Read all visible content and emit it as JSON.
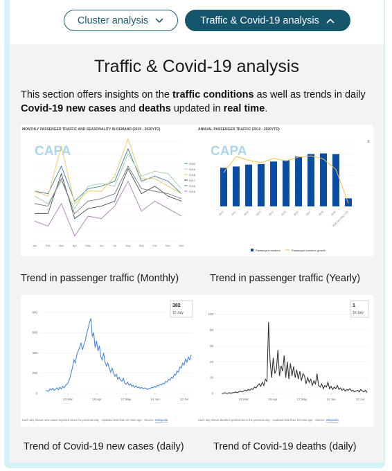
{
  "toggles": {
    "cluster_label": "Cluster analysis",
    "traffic_label": "Traffic & Covid-19 analysis"
  },
  "section": {
    "title": "Traffic & Covid-19 analysis",
    "intro": {
      "p1": "This section offers insights on the ",
      "b1": "traffic conditions",
      "p2": " as well as trends in daily ",
      "b2": "Covid-19 new cases",
      "p3": " and ",
      "b3": "deaths",
      "p4": " updated in ",
      "b4": "real time",
      "p5": "."
    }
  },
  "charts": {
    "monthly": {
      "caption": "Trend in passenger traffic (Monthly)",
      "heading": "MONTHLY PASSENGER TRAFFIC AND SEASONALITY IN DEMAND (2015 - 2020YTD)",
      "watermark": "CAPA"
    },
    "yearly": {
      "caption": "Trend in passenger traffic (Yearly)",
      "heading": "ANNUAL PASSENGER TRAFFIC (2010 - 2020YTD)",
      "watermark": "CAPA",
      "legend_bar": "Passenger numbers",
      "legend_line": "Passenger numbers growth"
    },
    "cases": {
      "caption": "Trend of Covid-19 new cases (daily)",
      "tooltip_value": "382",
      "tooltip_date": "16 July",
      "footnote": "Each day shows new cases reported since the previous day · Updated less than 10 mins ago · Source: ",
      "source": "Wikipedia"
    },
    "deaths": {
      "caption": "Trend of Covid-19 deaths (daily)",
      "tooltip_value": "1",
      "tooltip_date": "16 July",
      "footnote": "Each day shows deaths reported since the previous day · Updated less than 10 mins ago · Source: ",
      "source": "Wikipedia"
    }
  },
  "chart_data": [
    {
      "type": "line",
      "title": "MONTHLY PASSENGER TRAFFIC AND SEASONALITY IN DEMAND (2015 - 2020YTD)",
      "categories": [
        "Jan",
        "Feb",
        "Mar",
        "Apr",
        "May",
        "Jun",
        "Jul",
        "Aug",
        "Sep",
        "Oct",
        "Nov",
        "Dec"
      ],
      "series": [
        {
          "name": "2020",
          "color": "#3a7ca5",
          "values": [
            7.0,
            6.9,
            8.0,
            6.6,
            7.1,
            7.2,
            7.4,
            8.7,
            7.4,
            7.6,
            7.4,
            6.9
          ]
        },
        {
          "name": "2019",
          "color": "#9ad0a0",
          "values": [
            6.8,
            6.5,
            7.4,
            6.3,
            7.2,
            7.3,
            7.2,
            8.5,
            7.6,
            7.8,
            7.7,
            7.1
          ]
        },
        {
          "name": "2018",
          "color": "#f0c75e",
          "values": [
            7.0,
            6.8,
            8.8,
            6.5,
            7.0,
            7.0,
            7.6,
            9.1,
            7.5,
            7.5,
            7.2,
            6.9
          ]
        },
        {
          "name": "2017",
          "color": "#444c57",
          "values": [
            6.1,
            6.1,
            7.7,
            5.9,
            6.3,
            6.4,
            6.6,
            7.9,
            6.9,
            7.2,
            6.8,
            6.6
          ]
        },
        {
          "name": "2016",
          "color": "#6f7b87",
          "values": [
            6.5,
            6.4,
            7.5,
            6.1,
            6.6,
            6.7,
            6.9,
            8.0,
            7.1,
            7.0,
            6.9,
            6.7
          ]
        },
        {
          "name": "2015",
          "color": "#b079b8",
          "values": [
            5.8,
            5.6,
            6.5,
            5.2,
            6.0,
            5.9,
            6.4,
            7.4,
            6.2,
            6.6,
            6.3,
            6.0
          ]
        }
      ],
      "ylim": [
        5,
        9
      ]
    },
    {
      "type": "bar",
      "title": "ANNUAL PASSENGER TRAFFIC (2010 - 2020YTD)",
      "categories": [
        "2010",
        "2011",
        "2012",
        "2013",
        "2014",
        "2015",
        "2016",
        "2017",
        "2018",
        "2019",
        "2020 Jan-May YTD"
      ],
      "series": [
        {
          "name": "Passenger numbers",
          "values": [
            62,
            64,
            67,
            68,
            72,
            74,
            80,
            84,
            85,
            84,
            13
          ]
        },
        {
          "name": "Passenger numbers growth",
          "values": [
            1.5,
            4.1,
            3.5,
            3.1,
            3.8,
            3.4,
            4.0,
            4.2,
            3.7,
            2.0,
            -3.5
          ]
        }
      ]
    },
    {
      "type": "line",
      "x_ticks": [
        "22 Mar",
        "19 Apr",
        "17 May",
        "14 Jun",
        "12 Jul"
      ],
      "y_ticks": [
        0,
        200,
        400,
        600,
        800
      ],
      "ylim": [
        0,
        820
      ],
      "values": [
        30,
        25,
        20,
        45,
        35,
        50,
        30,
        40,
        55,
        35,
        60,
        45,
        70,
        55,
        80,
        90,
        110,
        150,
        200,
        260,
        330,
        300,
        380,
        420,
        450,
        500,
        430,
        480,
        520,
        590,
        640,
        700,
        740,
        560,
        600,
        450,
        520,
        420,
        470,
        360,
        330,
        400,
        310,
        270,
        300,
        250,
        210,
        250,
        200,
        170,
        190,
        140,
        160,
        130,
        120,
        150,
        100,
        90,
        110,
        80,
        95,
        70,
        80,
        60,
        75,
        55,
        65,
        50,
        60,
        45,
        55,
        50,
        40,
        50,
        45,
        60,
        55,
        70,
        60,
        80,
        75,
        90,
        85,
        100,
        95,
        120,
        110,
        140,
        130,
        160,
        150,
        190,
        180,
        220,
        210,
        260,
        250,
        300,
        280,
        340,
        310,
        360,
        330,
        382
      ]
    },
    {
      "type": "line",
      "x_ticks": [
        "22 Mar",
        "19 Apr",
        "17 May",
        "14 Jun",
        "12 Jul"
      ],
      "y_ticks": [
        0,
        20,
        40,
        60,
        80,
        100
      ],
      "ylim": [
        0,
        105
      ],
      "values": [
        0,
        0,
        1,
        0,
        0,
        1,
        0,
        1,
        1,
        2,
        1,
        2,
        3,
        2,
        3,
        4,
        3,
        5,
        4,
        6,
        5,
        8,
        7,
        10,
        12,
        9,
        14,
        10,
        18,
        15,
        90,
        40,
        20,
        45,
        25,
        30,
        55,
        22,
        35,
        28,
        48,
        20,
        40,
        18,
        38,
        22,
        34,
        20,
        30,
        18,
        28,
        16,
        25,
        22,
        12,
        20,
        14,
        18,
        10,
        16,
        12,
        25,
        10,
        8,
        12,
        6,
        10,
        8,
        14,
        6,
        9,
        5,
        8,
        6,
        10,
        5,
        7,
        4,
        6,
        3,
        5,
        4,
        6,
        3,
        4,
        2,
        3,
        4,
        2,
        5,
        3,
        2,
        4,
        1
      ]
    }
  ]
}
